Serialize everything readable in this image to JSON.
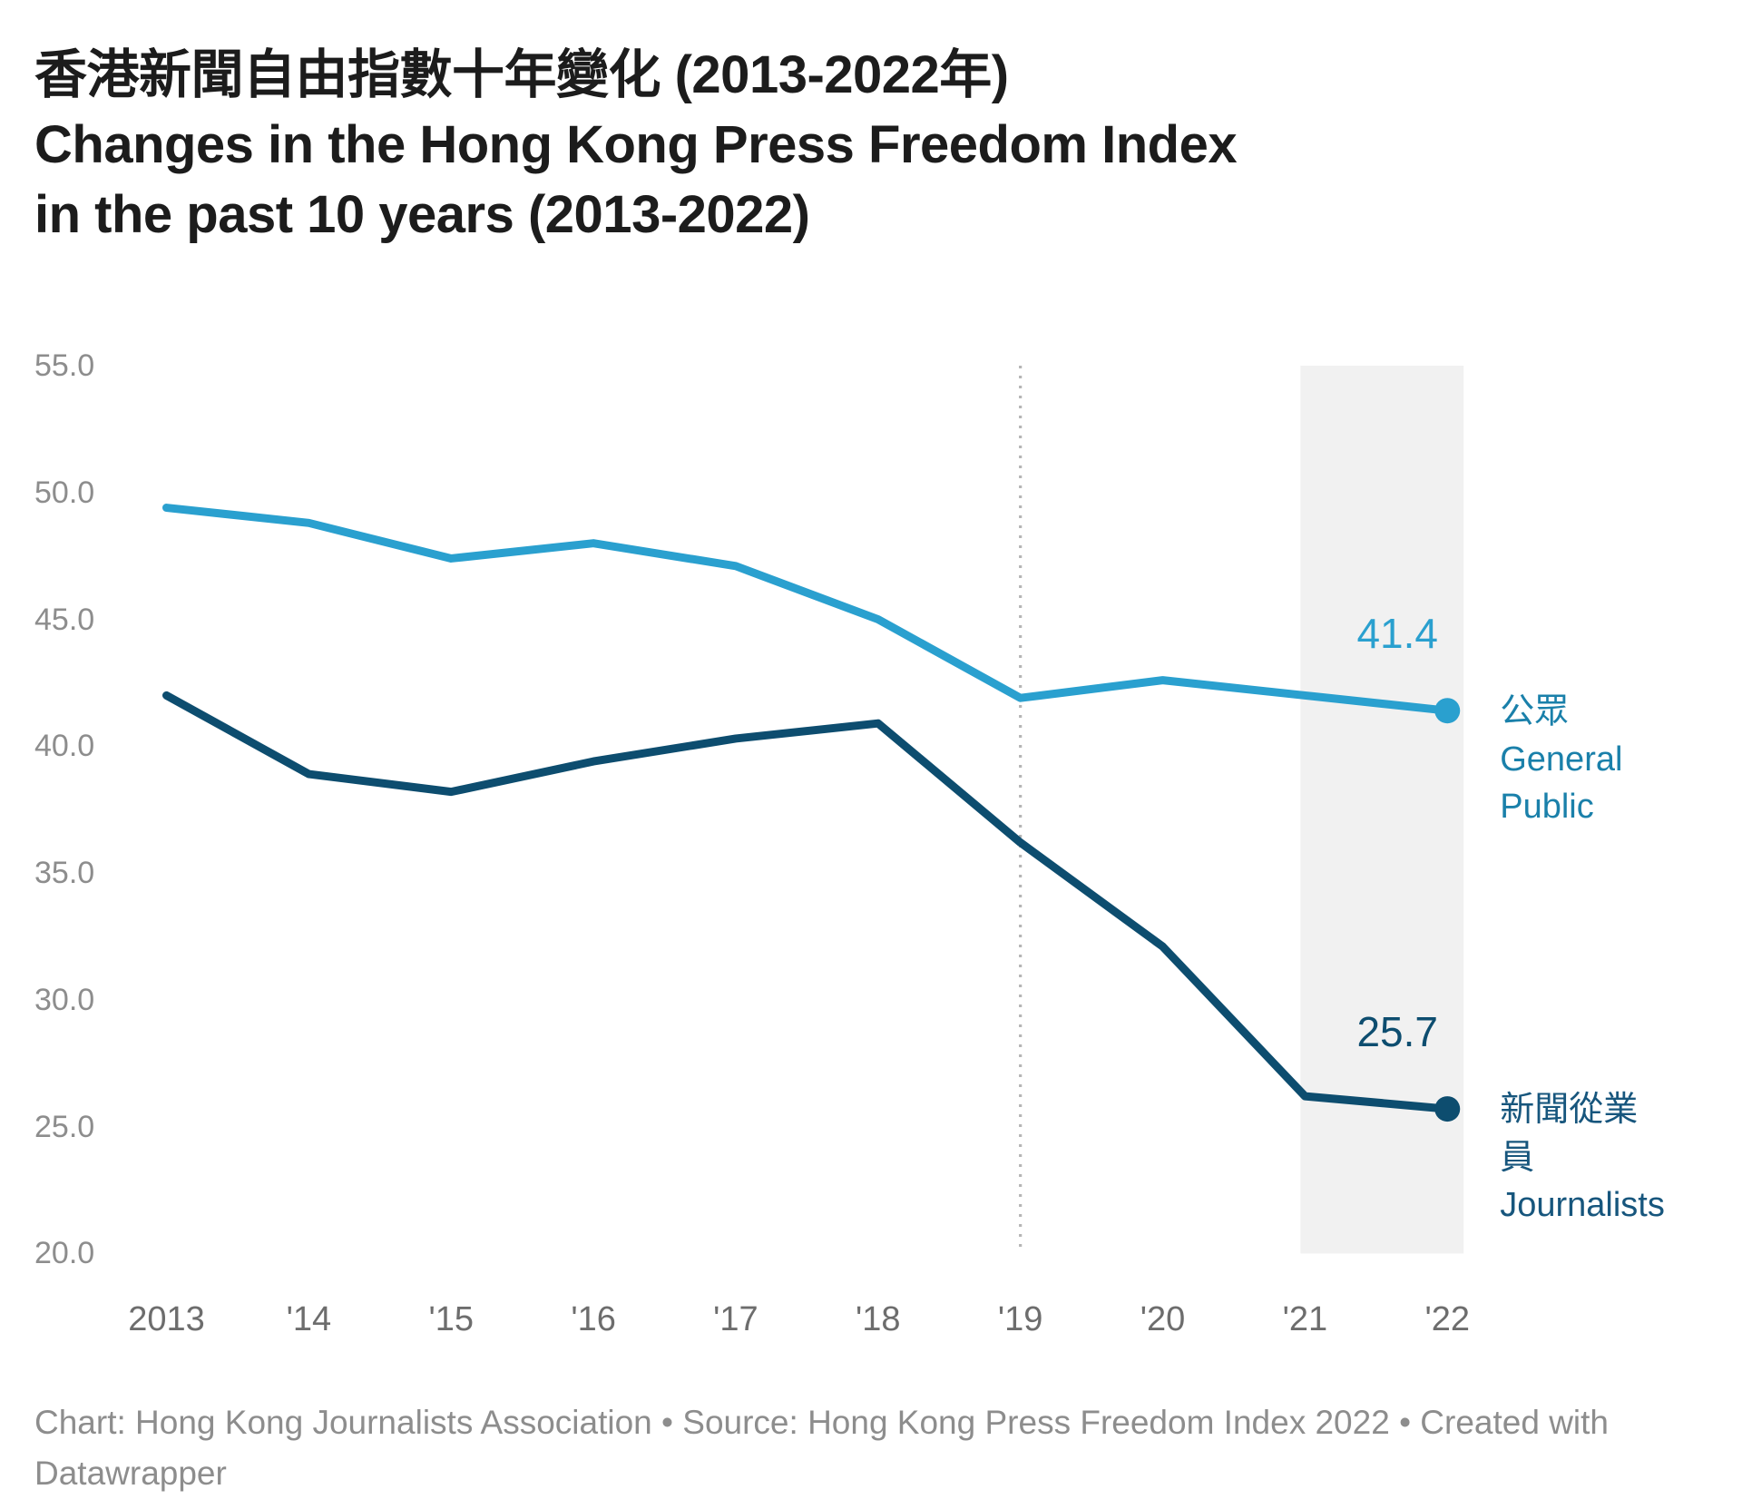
{
  "header": {
    "title_zh": "香港新聞自由指數十年變化 (2013-2022年)",
    "title_en_lines": [
      "Changes in the Hong Kong Press Freedom Index",
      "in the past 10 years (2013-2022)"
    ]
  },
  "chart_data": {
    "type": "line",
    "x": [
      2013,
      2014,
      2015,
      2016,
      2017,
      2018,
      2019,
      2020,
      2021,
      2022
    ],
    "x_tick_labels": [
      "2013",
      "'14",
      "'15",
      "'16",
      "'17",
      "'18",
      "'19",
      "'20",
      "'21",
      "'22"
    ],
    "y_tick_labels": [
      "55.0",
      "50.0",
      "45.0",
      "40.0",
      "35.0",
      "30.0",
      "25.0",
      "20.0"
    ],
    "y_tick_values": [
      55,
      50,
      45,
      40,
      35,
      30,
      25,
      20
    ],
    "ylim": [
      20,
      55
    ],
    "grid": "none",
    "legend_position": "right-of-line-ends",
    "series": [
      {
        "name_zh": "公眾",
        "name_en": "General Public",
        "label": "公眾 General Public",
        "values": [
          49.4,
          48.8,
          47.4,
          48.0,
          47.1,
          45.0,
          41.9,
          42.6,
          42.0,
          41.4
        ],
        "end_value_label": "41.4",
        "color": "#2aa0cf",
        "label_color": "#1a80aa"
      },
      {
        "name_zh": "新聞從業員",
        "name_en": "Journalists",
        "label": "新聞從業員 Journalists",
        "values": [
          42.0,
          38.9,
          38.2,
          39.4,
          40.3,
          40.9,
          36.2,
          32.1,
          26.2,
          25.7
        ],
        "end_value_label": "25.7",
        "color": "#0d4d6f",
        "label_color": "#17567d"
      }
    ],
    "annotations": {
      "vline_at_x": 2019,
      "highlight_range": [
        2021,
        2022
      ],
      "highlight_color": "#f1f1f1",
      "vline_color": "#b5b5b5"
    }
  },
  "footer": {
    "text": "Chart: Hong Kong Journalists Association • Source: Hong Kong Press Freedom Index 2022 • Created with Datawrapper"
  }
}
